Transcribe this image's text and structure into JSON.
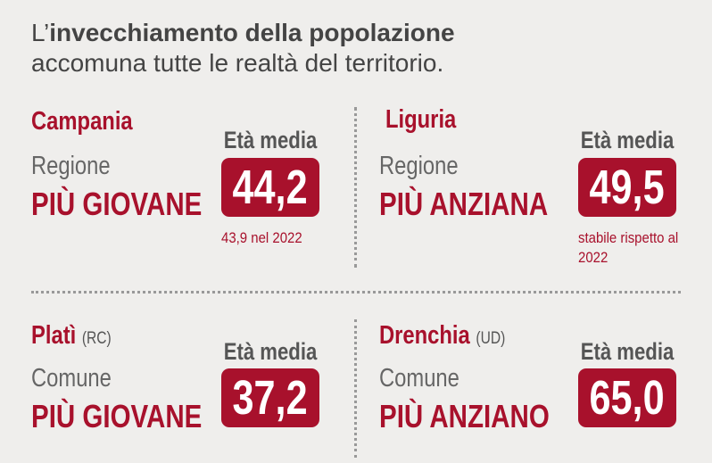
{
  "header": {
    "title_prefix": "L’",
    "title_bold": "invecchiamento della popolazione",
    "subtitle": "accomuna tutte le realtà del territorio."
  },
  "panels": [
    {
      "name": "Campania",
      "level": "Regione",
      "label": "PIÙ GIOVANE",
      "value_caption": "Età media",
      "value": "44,2",
      "note": "43,9 nel 2022"
    },
    {
      "name": "Liguria",
      "level": "Regione",
      "label": "PIÙ ANZIANA",
      "value_caption": "Età media",
      "value": "49,5",
      "note": "stabile rispetto al 2022"
    },
    {
      "name": "Platì",
      "province": "(RC)",
      "level": "Comune",
      "label": "PIÙ GIOVANE",
      "value_caption": "Età media",
      "value": "37,2"
    },
    {
      "name": "Drenchia",
      "province": "(UD)",
      "level": "Comune",
      "label": "PIÙ ANZIANO",
      "value_caption": "Età media",
      "value": "65,0"
    }
  ]
}
